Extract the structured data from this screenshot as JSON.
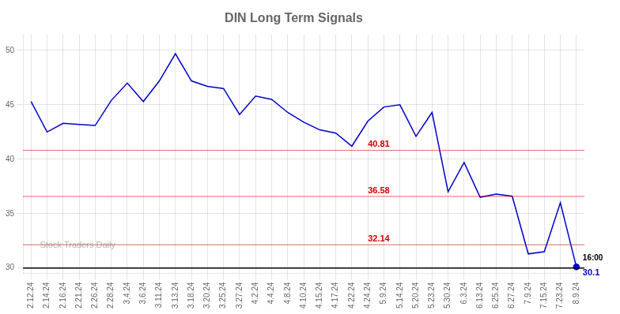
{
  "chart_data": {
    "type": "line",
    "title": "DIN Long Term Signals",
    "categories": [
      "2.12.24",
      "2.14.24",
      "2.16.24",
      "2.21.24",
      "2.26.24",
      "2.28.24",
      "3.4.24",
      "3.6.24",
      "3.11.24",
      "3.13.24",
      "3.18.24",
      "3.20.24",
      "3.25.24",
      "3.27.24",
      "4.2.24",
      "4.4.24",
      "4.8.24",
      "4.10.24",
      "4.15.24",
      "4.17.24",
      "4.22.24",
      "4.24.24",
      "5.9.24",
      "5.14.24",
      "5.20.24",
      "5.23.24",
      "5.30.24",
      "6.3.24",
      "6.13.24",
      "6.25.24",
      "6.27.24",
      "7.9.24",
      "7.15.24",
      "7.23.24",
      "8.9.24"
    ],
    "values": [
      45.3,
      42.5,
      43.3,
      43.2,
      43.1,
      45.4,
      47.0,
      45.3,
      47.2,
      49.7,
      47.2,
      46.7,
      46.5,
      44.1,
      45.8,
      45.5,
      44.3,
      43.4,
      42.7,
      42.4,
      41.2,
      43.5,
      44.8,
      45.0,
      42.1,
      44.3,
      37.0,
      39.7,
      36.5,
      36.8,
      36.6,
      31.3,
      31.5,
      36.0,
      30.1
    ],
    "color": "#0000cc",
    "ylim": [
      29.5,
      51.5
    ],
    "yticks": [
      30,
      35,
      40,
      45,
      50
    ],
    "grid": true,
    "reference_lines": [
      {
        "value": 40.81,
        "color": "#cc0000",
        "label": "40.81",
        "x": "4.24.24"
      },
      {
        "value": 36.58,
        "color": "#cc0000",
        "label": "36.58",
        "x": "4.24.24"
      },
      {
        "value": 32.14,
        "color": "#cc0000",
        "label": "32.14",
        "x": "4.24.24"
      },
      {
        "value": 30,
        "color": "#000000"
      }
    ],
    "annotations": [
      {
        "text": "16:00",
        "x": "8.9.24",
        "color": "#000000"
      },
      {
        "text": "30.1",
        "x": "8.9.24",
        "y": 30.1,
        "color": "#0000cc"
      },
      {
        "text": "Stock Traders Daily"
      }
    ]
  }
}
